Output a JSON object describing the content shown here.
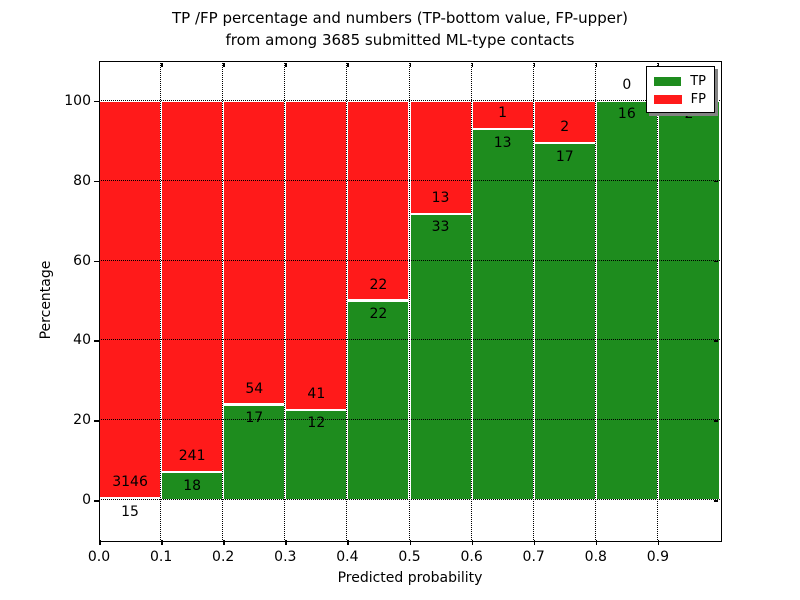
{
  "figure": {
    "title_line1": "TP /FP percentage and numbers (TP-bottom value, FP-upper)",
    "title_line2": "from among 3685 submitted ML-type contacts",
    "xlabel": "Predicted probability",
    "ylabel": "Percentage"
  },
  "legend": {
    "items": [
      {
        "label": "TP",
        "color": "#1e8c1e"
      },
      {
        "label": "FP",
        "color": "#ff1a1a"
      }
    ]
  },
  "chart_data": {
    "type": "bar",
    "stacked": true,
    "orientation": "vertical",
    "title": "TP /FP percentage and numbers (TP-bottom value, FP-upper) from among 3685 submitted ML-type contacts",
    "xlabel": "Predicted probability",
    "ylabel": "Percentage",
    "xlim": [
      0.0,
      1.0
    ],
    "ylim": [
      -10,
      110
    ],
    "bin_width": 0.1,
    "bin_starts": [
      0.0,
      0.1,
      0.2,
      0.3,
      0.4,
      0.5,
      0.6,
      0.7,
      0.8,
      0.9
    ],
    "xtick_labels": [
      "0.0",
      "0.1",
      "0.2",
      "0.3",
      "0.4",
      "0.5",
      "0.6",
      "0.7",
      "0.8",
      "0.9"
    ],
    "ytick_values": [
      0,
      20,
      40,
      60,
      80,
      100
    ],
    "grid": "dotted",
    "legend_position": "upper-right",
    "total_contacts": 3685,
    "series": [
      {
        "name": "TP",
        "color": "#1e8c1e",
        "counts": [
          15,
          18,
          17,
          12,
          22,
          33,
          13,
          17,
          16,
          2
        ]
      },
      {
        "name": "FP",
        "color": "#ff1a1a",
        "counts": [
          3146,
          241,
          54,
          41,
          22,
          13,
          1,
          2,
          0,
          0
        ]
      }
    ],
    "tp_percent": [
      0.47,
      6.95,
      23.94,
      22.64,
      50.0,
      71.74,
      92.86,
      89.47,
      100.0,
      100.0
    ]
  }
}
